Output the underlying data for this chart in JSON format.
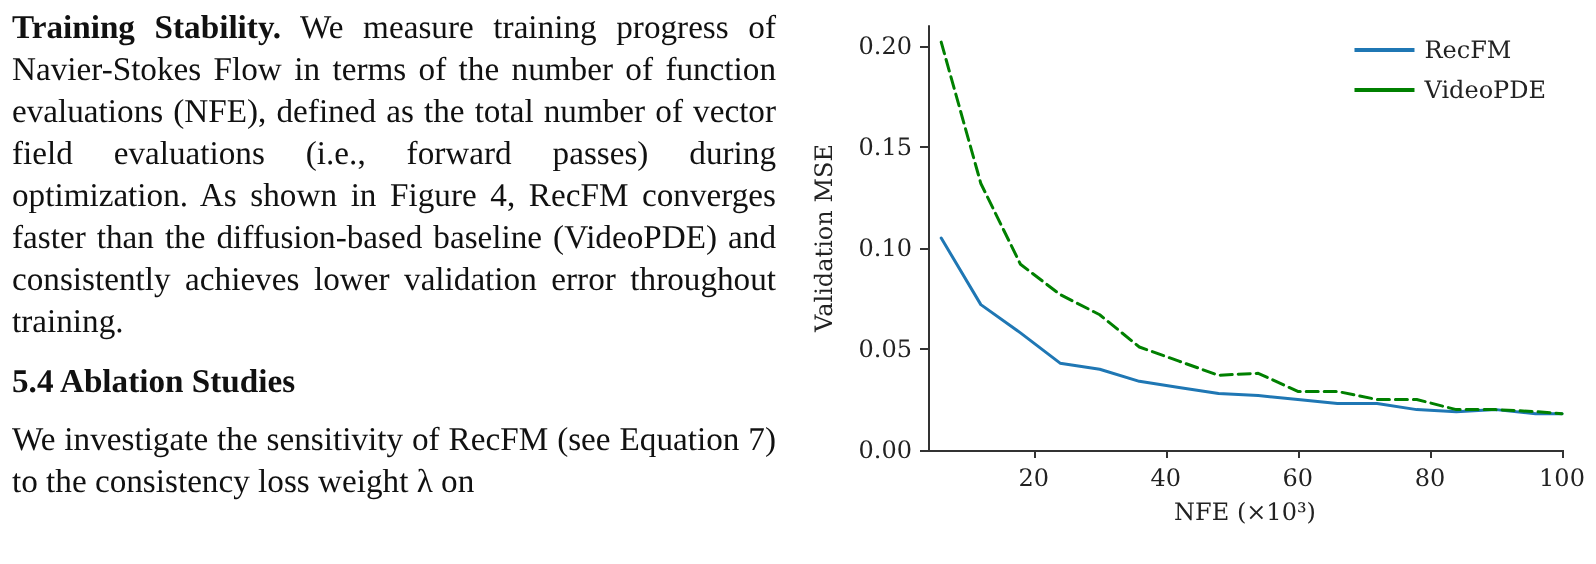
{
  "chart_data": {
    "type": "line",
    "xlabel": "NFE (×10³)",
    "ylabel": "Validation MSE",
    "x": [
      6,
      12,
      18,
      24,
      30,
      36,
      42,
      48,
      54,
      60,
      66,
      72,
      78,
      84,
      90,
      96,
      100
    ],
    "series": [
      {
        "name": "RecFM",
        "color": "#1f77b4",
        "line_style": "solid",
        "values": [
          0.105,
          0.072,
          0.058,
          0.043,
          0.04,
          0.034,
          0.031,
          0.028,
          0.027,
          0.025,
          0.023,
          0.023,
          0.02,
          0.019,
          0.02,
          0.018,
          0.018
        ]
      },
      {
        "name": "VideoPDE",
        "color": "#008000",
        "line_style": "dashed",
        "values": [
          0.202,
          0.132,
          0.092,
          0.077,
          0.067,
          0.051,
          0.044,
          0.037,
          0.038,
          0.029,
          0.029,
          0.025,
          0.025,
          0.02,
          0.02,
          0.019,
          0.018
        ]
      }
    ],
    "xlim": [
      4,
      100
    ],
    "xticks": [
      20,
      40,
      60,
      80,
      100
    ],
    "ylim": [
      0,
      0.21
    ],
    "yticks": [
      {
        "value": 0,
        "label": "0.00"
      },
      0.05,
      {
        "value": 0.1,
        "label": "0.10"
      },
      0.15,
      {
        "value": 0.2,
        "label": "0.20"
      }
    ],
    "legend": "top right",
    "grid": false,
    "marker": "none",
    "annotations": [
      "Training Stability.",
      "We measure training progress of Navier-Stokes Flow in terms of the number of function evaluations (NFE), defined as the total number of vector field evaluations (i.e., forward passes) during optimization. As shown in Figure 4, RecFM converges faster than the diffusion-based baseline (VideoPDE) and consistently achieves lower validation error throughout training.",
      "5.4 Ablation Studies",
      "We investigate the sensitivity of RecFM (see Equation 7) to the consistency loss weight λ on"
    ]
  }
}
